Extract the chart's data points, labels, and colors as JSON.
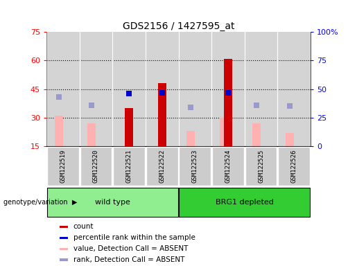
{
  "title": "GDS2156 / 1427595_at",
  "samples": [
    "GSM122519",
    "GSM122520",
    "GSM122521",
    "GSM122522",
    "GSM122523",
    "GSM122524",
    "GSM122525",
    "GSM122526"
  ],
  "groups": [
    {
      "name": "wild type",
      "samples": [
        0,
        1,
        2,
        3
      ],
      "color": "#90ee90"
    },
    {
      "name": "BRG1 depleted",
      "samples": [
        4,
        5,
        6,
        7
      ],
      "color": "#33cc33"
    }
  ],
  "count_bars": [
    null,
    null,
    35,
    48,
    null,
    61,
    null,
    null
  ],
  "percentile_rank": [
    null,
    null,
    46,
    47,
    null,
    47,
    null,
    null
  ],
  "value_absent": [
    31,
    27,
    null,
    null,
    23,
    30,
    27,
    22
  ],
  "rank_absent": [
    43,
    36,
    null,
    null,
    34,
    null,
    36,
    35
  ],
  "left_ylim": [
    15,
    75
  ],
  "left_yticks": [
    15,
    30,
    45,
    60,
    75
  ],
  "right_ylim": [
    0,
    100
  ],
  "right_yticks": [
    0,
    25,
    50,
    75,
    100
  ],
  "right_yticklabels": [
    "0",
    "25",
    "50",
    "75",
    "100%"
  ],
  "count_color": "#cc0000",
  "percentile_color": "#0000cc",
  "value_absent_color": "#ffb0b0",
  "rank_absent_color": "#9999cc",
  "bg_color": "#d4d4d4",
  "sample_box_color": "#cccccc",
  "legend_items": [
    {
      "label": "count",
      "color": "#cc0000"
    },
    {
      "label": "percentile rank within the sample",
      "color": "#0000cc"
    },
    {
      "label": "value, Detection Call = ABSENT",
      "color": "#ffb0b0"
    },
    {
      "label": "rank, Detection Call = ABSENT",
      "color": "#9999cc"
    }
  ]
}
